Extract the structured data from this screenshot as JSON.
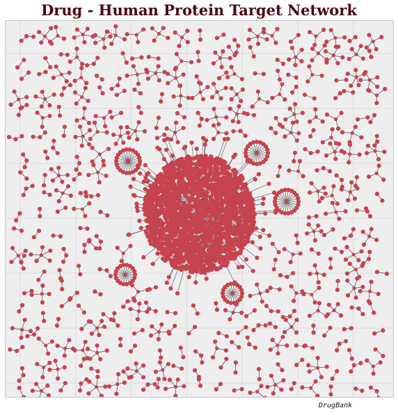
{
  "title": "Drug - Human Protein Target Network",
  "source_label": "DrugBank",
  "colors": {
    "node": "#c5444f",
    "edge": "#2b2b2b",
    "background": "#eeeeee",
    "grid": "#d3d3d3",
    "title": "#4a0712"
  },
  "network": {
    "layout": "force-directed",
    "components": "one large central cluster, several radial hubs, many small star-shaped groups and pairs",
    "grid": true
  }
}
